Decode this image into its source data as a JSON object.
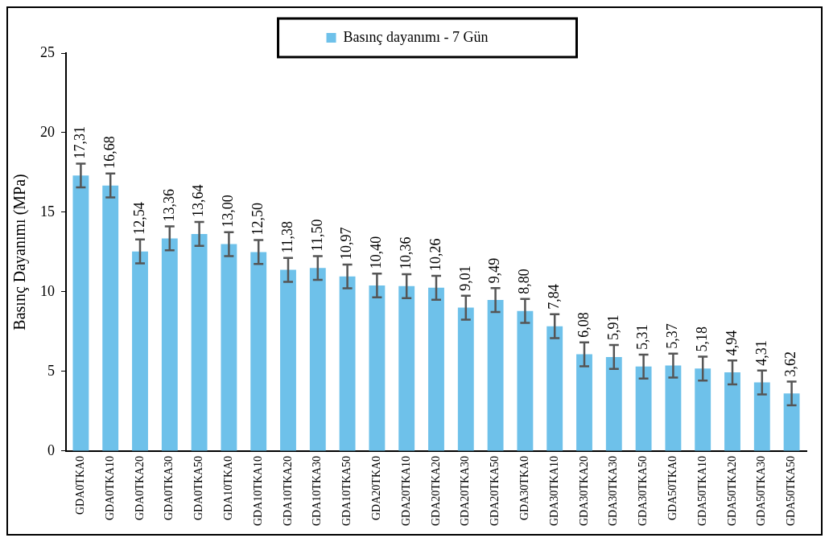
{
  "chart_data": {
    "type": "bar",
    "ylabel": "Basınç Dayanımı (MPa)",
    "categories": [
      "GDA0TKA0",
      "GDA0TKA10",
      "GDA0TKA20",
      "GDA0TKA30",
      "GDA0TKA50",
      "GDA10TKA0",
      "GDA10TKA10",
      "GDA10TKA20",
      "GDA10TKA30",
      "GDA10TKA50",
      "GDA20TKA0",
      "GDA20TKA10",
      "GDA20TKA20",
      "GDA20TKA30",
      "GDA20TKA50",
      "GDA30TKA0",
      "GDA30TKA10",
      "GDA30TKA20",
      "GDA30TKA30",
      "GDA30TKA50",
      "GDA50TKA0",
      "GDA50TKA10",
      "GDA50TKA20",
      "GDA50TKA30",
      "GDA50TKA50"
    ],
    "series": [
      {
        "name": "Basınç dayanımı - 7 Gün",
        "color": "#6ec1ea",
        "values": [
          17.31,
          16.68,
          12.54,
          13.36,
          13.64,
          13.0,
          12.5,
          11.38,
          11.5,
          10.97,
          10.4,
          10.36,
          10.26,
          9.01,
          9.49,
          8.8,
          7.84,
          6.08,
          5.91,
          5.31,
          5.37,
          5.18,
          4.94,
          4.31,
          3.62
        ],
        "errors": [
          0.75,
          0.75,
          0.75,
          0.75,
          0.75,
          0.75,
          0.75,
          0.75,
          0.75,
          0.75,
          0.75,
          0.75,
          0.75,
          0.75,
          0.75,
          0.75,
          0.75,
          0.75,
          0.75,
          0.75,
          0.75,
          0.75,
          0.75,
          0.75,
          0.75
        ],
        "value_labels": [
          "17,31",
          "16,68",
          "12,54",
          "13,36",
          "13,64",
          "13,00",
          "12,50",
          "11,38",
          "11,50",
          "10,97",
          "10,40",
          "10,36",
          "10,26",
          "9,01",
          "9,49",
          "8,80",
          "7,84",
          "6,08",
          "5,91",
          "5,31",
          "5,37",
          "5,18",
          "4,94",
          "4,31",
          "3,62"
        ]
      }
    ],
    "ylim": [
      0,
      25
    ],
    "yticks": [
      0,
      5,
      10,
      15,
      20,
      25
    ],
    "grid": false,
    "legend": "top"
  }
}
